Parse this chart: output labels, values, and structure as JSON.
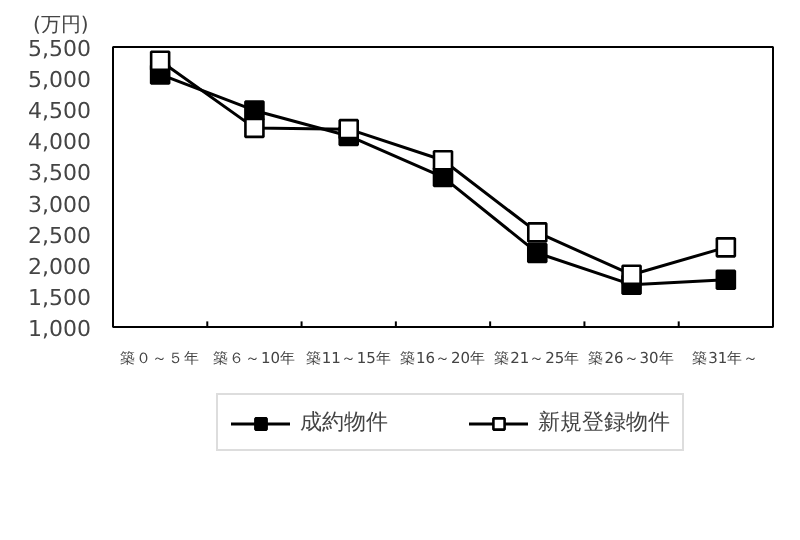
{
  "chart_data": {
    "type": "line",
    "ylabel": "(万円)",
    "categories": [
      "築０～５年",
      "築６～10年",
      "築11～15年",
      "築16～20年",
      "築21～25年",
      "築26～30年",
      "築31年～"
    ],
    "series": [
      {
        "name": "成約物件",
        "color": "#000000",
        "marker": "square",
        "values": [
          5060,
          4480,
          4070,
          3410,
          2190,
          1680,
          1760
        ]
      },
      {
        "name": "新規登録物件",
        "color": "#ffffff",
        "marker": "square",
        "values": [
          5280,
          4200,
          4180,
          3680,
          2520,
          1840,
          2280
        ]
      }
    ],
    "ylim": [
      1000,
      5500
    ],
    "yticks": [
      {
        "value": 1000,
        "label": "1,000"
      },
      {
        "value": 1500,
        "label": "1,500"
      },
      {
        "value": 2000,
        "label": "2,000"
      },
      {
        "value": 2500,
        "label": "2,500"
      },
      {
        "value": 3000,
        "label": "3,000"
      },
      {
        "value": 3500,
        "label": "3,500"
      },
      {
        "value": 4000,
        "label": "4,000"
      },
      {
        "value": 4500,
        "label": "4,500"
      },
      {
        "value": 5000,
        "label": "5,000"
      },
      {
        "value": 5500,
        "label": "5,500"
      }
    ],
    "grid": false,
    "legend": "bottom",
    "line_style": "solid"
  }
}
